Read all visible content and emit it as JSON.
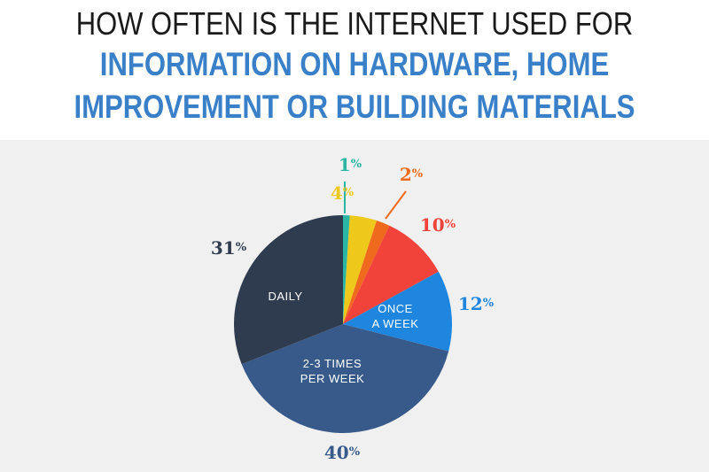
{
  "title": {
    "line1": "HOW OFTEN IS THE INTERNET USED FOR",
    "line2": "INFORMATION ON HARDWARE, HOME",
    "line3": "IMPROVEMENT OR BUILDING MATERIALS"
  },
  "chart_data": {
    "type": "pie",
    "title": "HOW OFTEN IS THE INTERNET USED FOR INFORMATION ON HARDWARE, HOME IMPROVEMENT OR BUILDING MATERIALS",
    "slices": [
      {
        "label": "",
        "value": 1,
        "pct_text": "1",
        "color": "#2bb5a5"
      },
      {
        "label": "",
        "value": 4,
        "pct_text": "4",
        "color": "#eec81a"
      },
      {
        "label": "",
        "value": 2,
        "pct_text": "2",
        "color": "#f06a1d"
      },
      {
        "label": "",
        "value": 10,
        "pct_text": "10",
        "color": "#f2433a"
      },
      {
        "label": "ONCE A WEEK",
        "label_lines": [
          "ONCE",
          "A WEEK"
        ],
        "value": 12,
        "pct_text": "12",
        "color": "#1f86e0"
      },
      {
        "label": "2-3 TIMES PER WEEK",
        "label_lines": [
          "2-3 TIMES",
          "PER WEEK"
        ],
        "value": 40,
        "pct_text": "40",
        "color": "#385a8a"
      },
      {
        "label": "DAILY",
        "label_lines": [
          "DAILY"
        ],
        "value": 31,
        "pct_text": "31",
        "color": "#2f3c50"
      }
    ],
    "percent_sign": "%"
  }
}
